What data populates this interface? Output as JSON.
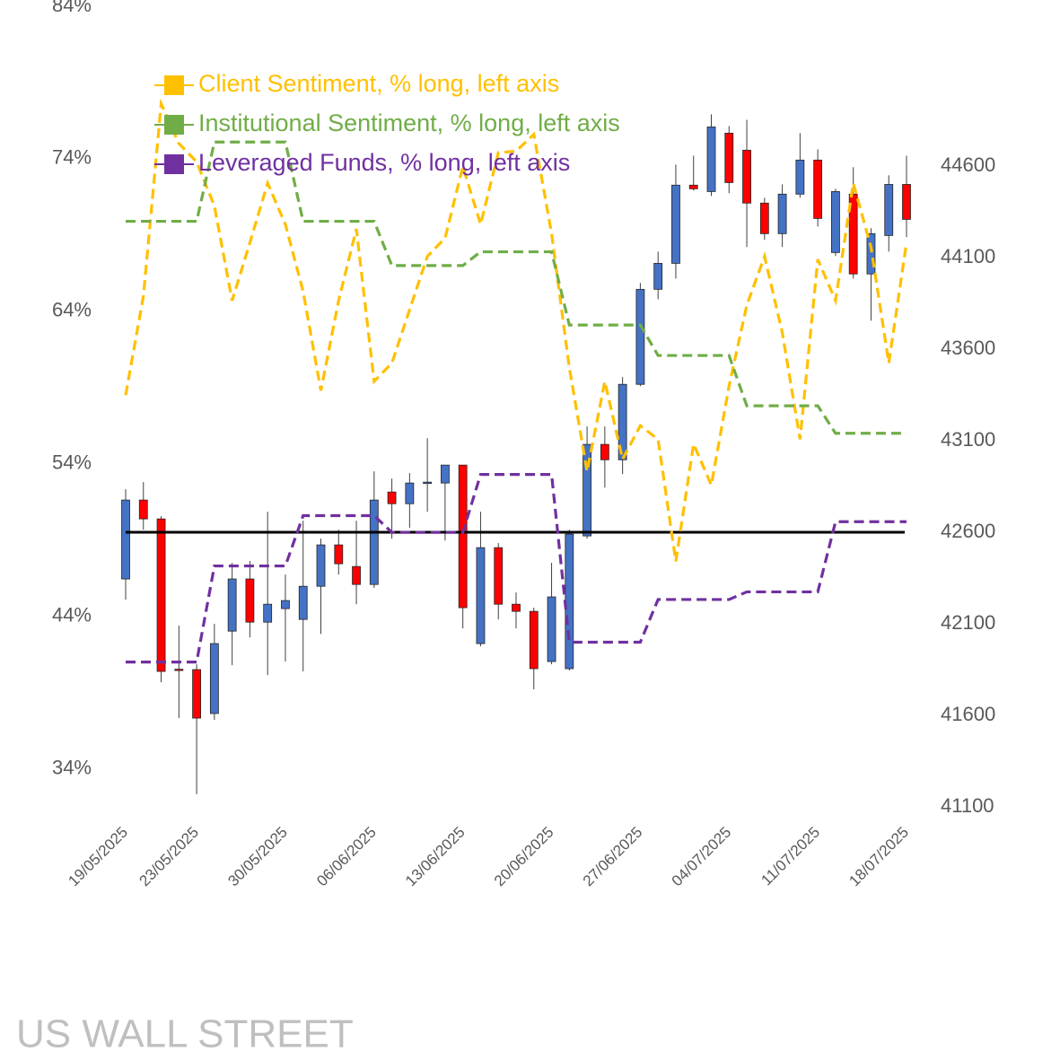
{
  "chart_data": {
    "type": "combo",
    "title": "US WALL STREET",
    "categories": [
      "19/05/2025",
      null,
      null,
      null,
      "23/05/2025",
      null,
      null,
      null,
      null,
      "30/05/2025",
      null,
      null,
      null,
      null,
      "06/06/2025",
      null,
      null,
      null,
      null,
      "13/06/2025",
      null,
      null,
      null,
      null,
      "20/06/2025",
      null,
      null,
      null,
      null,
      "27/06/2025",
      null,
      null,
      null,
      null,
      "04/07/2025",
      null,
      null,
      null,
      null,
      "11/07/2025",
      null,
      null,
      null,
      null,
      "18/07/2025"
    ],
    "ylim": [
      31.5,
      84
    ],
    "yticks": [
      {
        "value": 34,
        "label": "34%"
      },
      {
        "value": 44,
        "label": "44%"
      },
      {
        "value": 54,
        "label": "54%"
      },
      {
        "value": 64,
        "label": "64%"
      },
      {
        "value": 74,
        "label": "74%"
      },
      {
        "value": 84,
        "label": "84%"
      }
    ],
    "y2lim": [
      41100,
      45473
    ],
    "y2ticks": [
      41100,
      41600,
      42100,
      42600,
      43100,
      43600,
      44100,
      44600
    ],
    "legend": "upper left",
    "series": [
      {
        "name": "Client Sentiment, % long, left axis",
        "type": "line",
        "color": "#ffc000",
        "values": [
          58.5,
          65.0,
          77.6,
          75.0,
          73.8,
          70.9,
          64.7,
          68.5,
          72.4,
          69.7,
          65.3,
          58.8,
          64.7,
          69.4,
          59.4,
          60.6,
          64.1,
          67.6,
          68.8,
          73.5,
          69.7,
          74.4,
          74.5,
          75.6,
          69.1,
          60.3,
          53.5,
          59.4,
          54.3,
          56.5,
          55.6,
          47.6,
          55.3,
          52.6,
          59.1,
          64.4,
          67.6,
          62.6,
          55.6,
          67.4,
          64.7,
          72.4,
          68.2,
          60.6,
          68.5
        ]
      },
      {
        "name": "Institutional Sentiment, % long, left axis",
        "type": "line",
        "color": "#70ad47",
        "values": [
          69.9,
          69.9,
          69.9,
          69.9,
          69.9,
          75.1,
          75.1,
          75.1,
          75.1,
          75.1,
          69.9,
          69.9,
          69.9,
          69.9,
          69.9,
          67.0,
          67.0,
          67.0,
          67.0,
          67.0,
          67.9,
          67.9,
          67.9,
          67.9,
          67.9,
          63.1,
          63.1,
          63.1,
          63.1,
          63.1,
          61.1,
          61.1,
          61.1,
          61.1,
          61.1,
          57.8,
          57.8,
          57.8,
          57.8,
          57.8,
          56.0,
          56.0,
          56.0,
          56.0,
          56.0
        ]
      },
      {
        "name": "Leveraged Funds, % long, left axis",
        "type": "line",
        "color": "#7030a0",
        "values": [
          41.0,
          41.0,
          41.0,
          41.0,
          41.0,
          47.3,
          47.3,
          47.3,
          47.3,
          47.3,
          50.6,
          50.6,
          50.6,
          50.6,
          50.6,
          49.5,
          49.5,
          49.5,
          49.5,
          49.5,
          53.3,
          53.3,
          53.3,
          53.3,
          53.3,
          42.3,
          42.3,
          42.3,
          42.3,
          42.3,
          45.1,
          45.1,
          45.1,
          45.1,
          45.1,
          45.6,
          45.6,
          45.6,
          45.6,
          45.6,
          50.2,
          50.2,
          50.2,
          50.2,
          50.2
        ]
      },
      {
        "type": "candlestick",
        "axis": "y2",
        "up_color": "#4472c4",
        "down_color": "#ff0000",
        "open": [
          42345,
          42776,
          42673,
          41852,
          41850,
          41610,
          42060,
          42345,
          42109,
          42183,
          42124,
          42305,
          42531,
          42413,
          42315,
          42820,
          42756,
          42869,
          42869,
          42967,
          41992,
          42516,
          42207,
          42168,
          41894,
          41855,
          42580,
          43080,
          42996,
          43408,
          43927,
          44069,
          44496,
          44461,
          44780,
          44687,
          44398,
          44231,
          44447,
          44633,
          44128,
          44447,
          44011,
          44221,
          44500
        ],
        "high": [
          42835,
          42874,
          42688,
          42090,
          41879,
          42100,
          42433,
          42443,
          42712,
          42369,
          42663,
          42565,
          42614,
          42663,
          42933,
          42893,
          42923,
          43114,
          42967,
          42967,
          42712,
          42541,
          42271,
          42188,
          42433,
          42614,
          43178,
          43178,
          43447,
          43962,
          44133,
          44608,
          44657,
          44883,
          44819,
          44853,
          44427,
          44500,
          44780,
          44692,
          44476,
          44594,
          44261,
          44550,
          44657
        ],
        "low": [
          42232,
          42614,
          41781,
          41585,
          41169,
          41575,
          41874,
          42026,
          41820,
          41894,
          41840,
          42045,
          42369,
          42207,
          42296,
          42565,
          42624,
          42712,
          42555,
          42075,
          41977,
          42124,
          42075,
          41742,
          41879,
          41845,
          42565,
          42844,
          42918,
          43398,
          43873,
          43986,
          44466,
          44437,
          44452,
          44158,
          44197,
          44158,
          44427,
          44270,
          44109,
          43986,
          43756,
          44133,
          44212
        ],
        "close": [
          42776,
          42673,
          41840,
          41847,
          41585,
          41992,
          42345,
          42109,
          42207,
          42227,
          42305,
          42531,
          42428,
          42315,
          42776,
          42756,
          42869,
          42874,
          42967,
          42188,
          42516,
          42207,
          42168,
          41855,
          42247,
          42590,
          43080,
          42996,
          43408,
          43927,
          44069,
          44496,
          44476,
          44814,
          44510,
          44398,
          44231,
          44447,
          44633,
          44314,
          44461,
          44011,
          44231,
          44500,
          44309
        ]
      }
    ],
    "reference_line": {
      "value": 42600,
      "axis": "y2",
      "color": "#000000"
    }
  }
}
